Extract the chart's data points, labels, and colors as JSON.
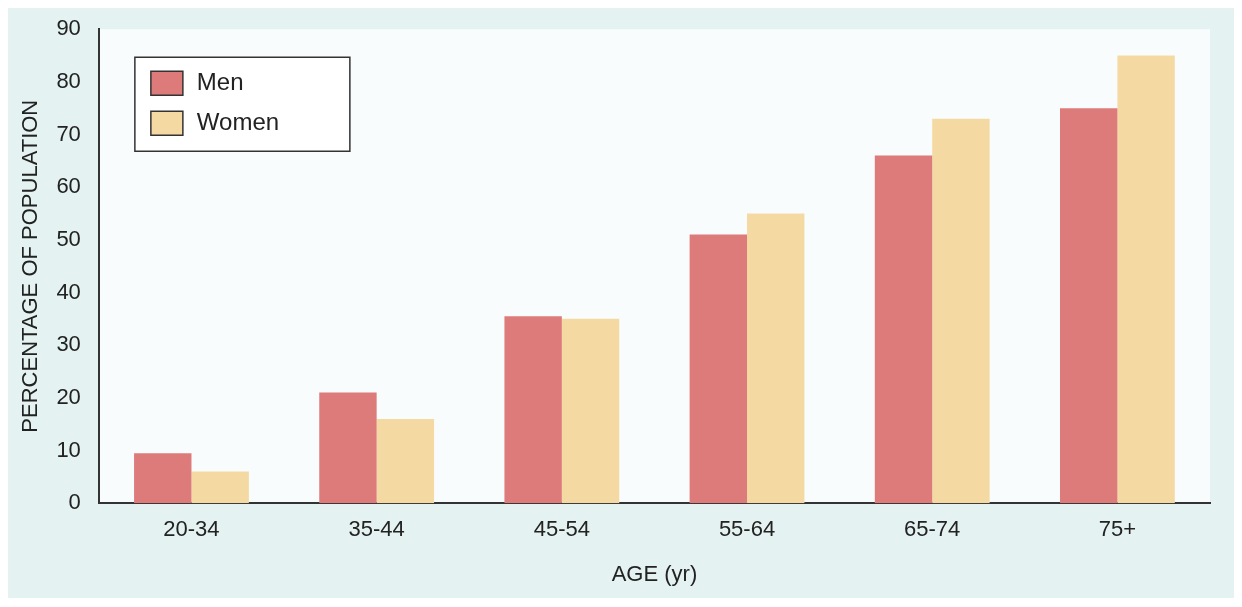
{
  "chart_data": {
    "type": "bar",
    "xlabel": "AGE (yr)",
    "ylabel": "PERCENTAGE OF POPULATION",
    "categories": [
      "20-34",
      "35-44",
      "45-54",
      "55-64",
      "65-74",
      "75+"
    ],
    "series": [
      {
        "name": "Men",
        "color": "#dd7b7b",
        "values": [
          9.5,
          21,
          35.5,
          51,
          66,
          75
        ]
      },
      {
        "name": "Women",
        "color": "#f5d9a3",
        "values": [
          6,
          16,
          35,
          55,
          73,
          85
        ]
      }
    ],
    "ylim": [
      0,
      90
    ],
    "yticks": [
      0,
      10,
      20,
      30,
      40,
      50,
      60,
      70,
      80,
      90
    ],
    "grid": false,
    "legend": "top left"
  }
}
